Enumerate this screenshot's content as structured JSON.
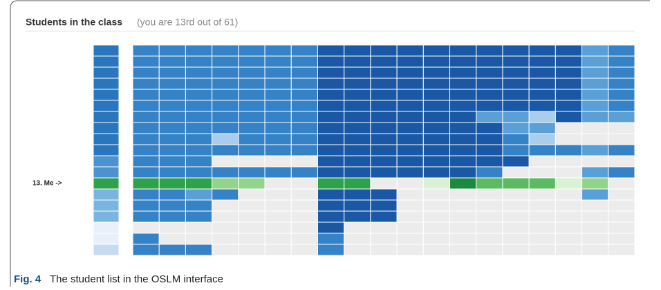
{
  "header": {
    "title": "Students in the class",
    "subtitle": "(you are 13rd out of 61)"
  },
  "grid": {
    "palette": {
      "D": "#1a58a6",
      "M": "#3583c6",
      "L": "#5a9fd6",
      "P": "#a9cdea",
      "E": "#ececec",
      "G": "#2ea14c",
      "g": "#92d48c",
      "h": "#daf1d6",
      "F": "#1c8a3e",
      "m": "#5cbb62",
      "B": "#2a76bc",
      "b": "#4d92d0",
      "c": "#7ab5e0",
      "w": "#e8f0fa",
      "v": "#c4dbf0"
    },
    "first_column": "BBBBBBBBBBbbGcccwwv",
    "rows": [
      "MMMMMMMDDDDDDDDDDLM",
      "MMMMMMMDDDDDDDDDDLM",
      "MMMMMMMDDDDDDDDDDLM",
      "MMMMMMMDDDDDDDDDDLM",
      "MMMMMMMDDDDDDDDDDLM",
      "MMMMMMMDDDDDDDDDDLM",
      "MMMMMMMDDDDDDLLPDLL",
      "MMMMMMMDDDDDDDLLEEE",
      "MMMPMMMDDDDDDDMPEEE",
      "MMMMMMMDDDDDDDMMMLM",
      "MMMEEEEDDDDDDDDEEEE",
      "MMMMMMMDDDDDDMEEELM",
      "GGGggEEGGEEhFmmmhgE",
      "MMLMEEEDDDEEEEEEELE",
      "MMMEEEEDDDEEEEEEEEE",
      "MMMEEEEDDDEEEEEEEEE",
      "EEEEEEEDEEEEEEEEEEE",
      "MEEEEEEMEEEEEEEEEEE",
      "MMMEEEEMEEEEEEEEEEE"
    ],
    "row_labels": [
      null,
      null,
      null,
      null,
      null,
      null,
      null,
      null,
      null,
      null,
      null,
      null,
      "13. Me ->",
      null,
      null,
      null,
      null,
      null,
      null
    ]
  },
  "caption": {
    "label": "Fig. 4",
    "text": "The student list in the OSLM interface"
  }
}
